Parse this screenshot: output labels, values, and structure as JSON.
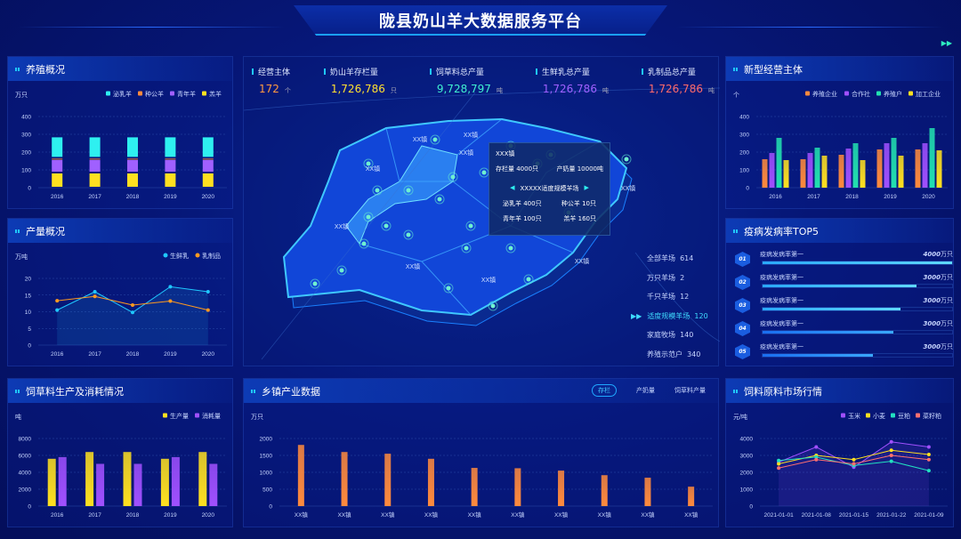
{
  "header": {
    "title": "陇县奶山羊大数据服务平台"
  },
  "colors": {
    "cyan": "#2ef0f0",
    "orange": "#ff8a3d",
    "purple": "#a060ff",
    "yellow": "#ffe020",
    "teal": "#22e0b0",
    "blue": "#1fc8ff",
    "pink": "#ff7070"
  },
  "kpis": [
    {
      "label": "经营主体",
      "value": "172",
      "unit": "个",
      "color": "#ff9a40"
    },
    {
      "label": "奶山羊存栏量",
      "value": "1,726,786",
      "unit": "只",
      "color": "#ffe030"
    },
    {
      "label": "饲草料总产量",
      "value": "9,728,797",
      "unit": "吨",
      "color": "#40f0d0"
    },
    {
      "label": "生鲜乳总产量",
      "value": "1,726,786",
      "unit": "吨",
      "color": "#a060ff"
    },
    {
      "label": "乳制品总产量",
      "value": "1,726,786",
      "unit": "吨",
      "color": "#ff6a6a"
    }
  ],
  "map": {
    "town_labels": [
      "XX镇",
      "XX镇",
      "XX镇",
      "XX镇",
      "XX镇",
      "XX镇",
      "XX镇",
      "XX镇",
      "XX镇"
    ],
    "tooltip": {
      "town": "XXX镇",
      "stock": "存栏量 4000只",
      "milk": "产奶量 10000吨",
      "farm": "XXXXX适度规模羊场",
      "lactating": "泌乳羊 400只",
      "ram": "种公羊 10只",
      "young": "青年羊 100只",
      "lamb": "羔羊 160只"
    },
    "stats": [
      {
        "label": "全部羊场",
        "value": "614"
      },
      {
        "label": "万只羊场",
        "value": "2"
      },
      {
        "label": "千只羊场",
        "value": "12"
      },
      {
        "label": "适度规模羊场",
        "value": "120",
        "active": true
      },
      {
        "label": "家庭牧场",
        "value": "140"
      },
      {
        "label": "养殖示范户",
        "value": "340"
      }
    ]
  },
  "panels": {
    "breeding": {
      "title": "养殖概况"
    },
    "output": {
      "title": "产量概况"
    },
    "feed": {
      "title": "饲草料生产及消耗情况"
    },
    "town": {
      "title": "乡镇产业数据",
      "tabs": [
        "存栏",
        "产奶量",
        "饲草料产量"
      ]
    },
    "entities": {
      "title": "新型经营主体"
    },
    "disease": {
      "title": "疫病发病率TOP5",
      "items": [
        {
          "rank": "01",
          "name": "疫病发病率第一",
          "value": "4000",
          "unit": "万只",
          "fraction": 1.0
        },
        {
          "rank": "02",
          "name": "疫病发病率第一",
          "value": "3000",
          "unit": "万只",
          "fraction": 0.81
        },
        {
          "rank": "03",
          "name": "疫病发病率第一",
          "value": "3000",
          "unit": "万只",
          "fraction": 0.73
        },
        {
          "rank": "04",
          "name": "疫病发病率第一",
          "value": "3000",
          "unit": "万只",
          "fraction": 0.69
        },
        {
          "rank": "05",
          "name": "疫病发病率第一",
          "value": "3000",
          "unit": "万只",
          "fraction": 0.58
        }
      ]
    },
    "price": {
      "title": "饲料原料市场行情"
    }
  },
  "chart_data": [
    {
      "id": "breeding",
      "type": "bar",
      "stacked": true,
      "ylabel": "万只",
      "ylim": [
        0,
        400
      ],
      "yticks": [
        0,
        100,
        200,
        300,
        400
      ],
      "categories": [
        "2016",
        "2017",
        "2018",
        "2019",
        "2020"
      ],
      "series": [
        {
          "name": "羔羊",
          "color": "#ffe020",
          "values": [
            85,
            85,
            85,
            85,
            85
          ]
        },
        {
          "name": "青年羊",
          "color": "#a060ff",
          "values": [
            75,
            75,
            75,
            75,
            75
          ]
        },
        {
          "name": "种公羊",
          "color": "#ff8a3d",
          "values": [
            8,
            8,
            8,
            8,
            8
          ]
        },
        {
          "name": "泌乳羊",
          "color": "#2ef0f0",
          "values": [
            120,
            120,
            120,
            120,
            120
          ]
        }
      ],
      "legend_order": [
        "泌乳羊",
        "种公羊",
        "青年羊",
        "羔羊"
      ],
      "legend": "top-right",
      "grid": true
    },
    {
      "id": "output",
      "type": "line",
      "ylabel": "万吨",
      "ylim": [
        0,
        20
      ],
      "yticks": [
        0,
        5,
        10,
        15,
        20
      ],
      "categories": [
        "2016",
        "2017",
        "2018",
        "2019",
        "2020"
      ],
      "series": [
        {
          "name": "生鲜乳",
          "color": "#1fc8ff",
          "values": [
            10.5,
            16,
            9.8,
            17.5,
            16
          ]
        },
        {
          "name": "乳制品",
          "color": "#ff9a20",
          "values": [
            13.3,
            14.6,
            12,
            13.2,
            10.5
          ]
        }
      ],
      "legend": "top-right",
      "grid": true
    },
    {
      "id": "feed",
      "type": "bar",
      "ylabel": "吨",
      "ylim": [
        0,
        8000
      ],
      "yticks": [
        0,
        2000,
        4000,
        6000,
        8000
      ],
      "categories": [
        "2016",
        "2017",
        "2018",
        "2019",
        "2020"
      ],
      "series": [
        {
          "name": "生产量",
          "color": "#ffe020",
          "values": [
            5600,
            6400,
            6400,
            5600,
            6400
          ]
        },
        {
          "name": "消耗量",
          "color": "#a050ff",
          "values": [
            5800,
            5000,
            5000,
            5800,
            5000
          ]
        }
      ],
      "legend": "top-right",
      "grid": true
    },
    {
      "id": "town",
      "type": "bar",
      "ylabel": "万只",
      "ylim": [
        0,
        2000
      ],
      "yticks": [
        0,
        500,
        1000,
        1500,
        2000
      ],
      "categories": [
        "XX镇",
        "XX镇",
        "XX镇",
        "XX镇",
        "XX镇",
        "XX镇",
        "XX镇",
        "XX镇",
        "XX镇",
        "XX镇"
      ],
      "series": [
        {
          "color": "#ff8a3d",
          "values": [
            1810,
            1600,
            1550,
            1400,
            1130,
            1120,
            1050,
            915,
            840,
            575
          ]
        }
      ],
      "grid": true
    },
    {
      "id": "entities",
      "type": "bar",
      "ylabel": "个",
      "ylim": [
        0,
        400
      ],
      "yticks": [
        0,
        100,
        200,
        300,
        400
      ],
      "categories": [
        "2016",
        "2017",
        "2018",
        "2019",
        "2020"
      ],
      "series": [
        {
          "name": "养殖企业",
          "color": "#ff8a3d",
          "values": [
            160,
            160,
            185,
            215,
            215
          ]
        },
        {
          "name": "合作社",
          "color": "#a050ff",
          "values": [
            195,
            195,
            220,
            250,
            250
          ]
        },
        {
          "name": "养殖户",
          "color": "#22e0b0",
          "values": [
            280,
            225,
            250,
            280,
            335
          ]
        },
        {
          "name": "加工企业",
          "color": "#ffe020",
          "values": [
            155,
            180,
            155,
            180,
            210
          ]
        }
      ],
      "legend": "top-right",
      "grid": true
    },
    {
      "id": "price",
      "type": "line",
      "ylabel": "元/吨",
      "ylim": [
        0,
        4000
      ],
      "yticks": [
        0,
        1000,
        2000,
        3000,
        4000
      ],
      "categories": [
        "2021-01-01",
        "2021-01-08",
        "2021-01-15",
        "2021-01-22",
        "2021-01-09"
      ],
      "series": [
        {
          "name": "玉米",
          "color": "#a050ff",
          "values": [
            2600,
            3500,
            2300,
            3800,
            3500
          ]
        },
        {
          "name": "小麦",
          "color": "#ffe020",
          "values": [
            2500,
            3000,
            2750,
            3300,
            3050
          ]
        },
        {
          "name": "豆粕",
          "color": "#22e0c0",
          "values": [
            2700,
            2900,
            2400,
            2650,
            2100
          ]
        },
        {
          "name": "菜籽粕",
          "color": "#ff7070",
          "values": [
            2250,
            2750,
            2500,
            3000,
            2750
          ]
        }
      ],
      "legend": "top-right",
      "grid": true
    }
  ]
}
